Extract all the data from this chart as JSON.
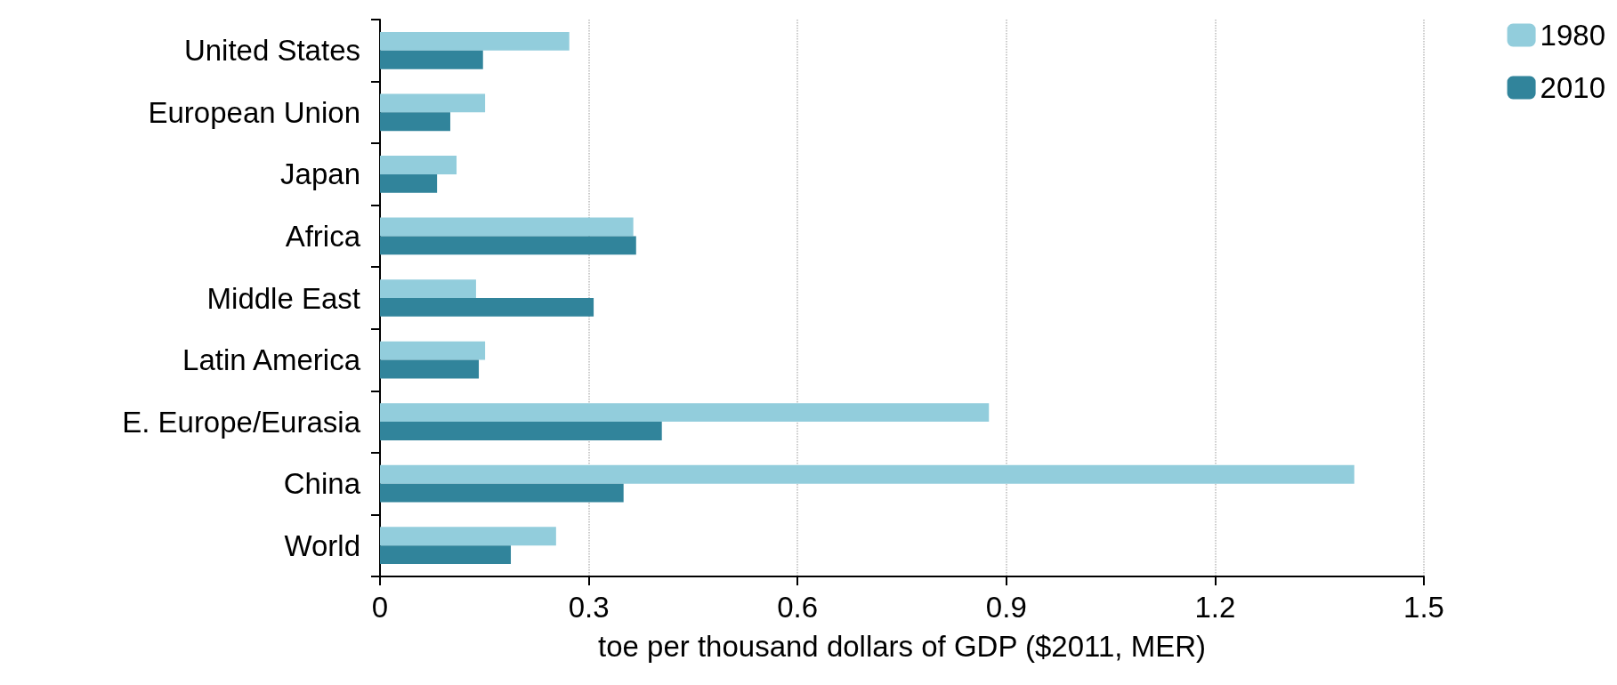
{
  "chart_data": {
    "type": "bar",
    "orientation": "horizontal",
    "xlabel": "toe per thousand dollars of GDP ($2011, MER)",
    "categories": [
      "United States",
      "European Union",
      "Japan",
      "Africa",
      "Middle East",
      "Latin America",
      "E. Europe/Eurasia",
      "China",
      "World"
    ],
    "series": [
      {
        "name": "1980",
        "color": "#92cddc",
        "values": [
          0.272,
          0.151,
          0.11,
          0.364,
          0.138,
          0.151,
          0.875,
          1.4,
          0.253
        ]
      },
      {
        "name": "2010",
        "color": "#31849b",
        "values": [
          0.148,
          0.101,
          0.082,
          0.368,
          0.307,
          0.142,
          0.405,
          0.35,
          0.188
        ]
      }
    ],
    "xlim": [
      0,
      1.5
    ],
    "xticks": [
      0,
      0.3,
      0.6,
      0.9,
      1.2,
      1.5
    ],
    "grid": "x",
    "legend": "top right"
  }
}
